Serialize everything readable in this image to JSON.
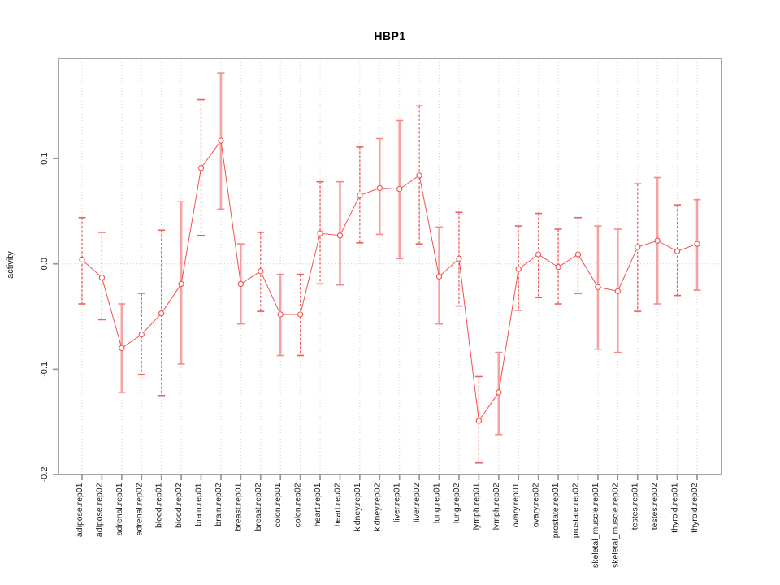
{
  "title": "HBP1",
  "colors": {
    "line": "#f5504e",
    "marker": "#f5504e",
    "marker_fill": "#ffffff",
    "error_bar_solid": "#f7a2a2",
    "error_bar_dashed": "#f15e5c",
    "frame": "#979797",
    "grid": "#cfcfcf",
    "text": "#1a1a1a",
    "background": "#ffffff"
  },
  "chart_data": {
    "type": "line",
    "title": "HBP1",
    "xlabel": "",
    "ylabel": "activity",
    "ylim": [
      -0.2,
      0.195
    ],
    "yticks": [
      0.1,
      0.0,
      -0.1,
      -0.2
    ],
    "ytick_labels": [
      "0.1",
      "0.0",
      "-0.1",
      "-0.2"
    ],
    "grid": "vertical dotted line at every category; horizontal dotted line at y=0",
    "legend_position": "none",
    "marker": "open-circle",
    "error_bars": true,
    "categories": [
      "adipose.rep01",
      "adipose.rep02",
      "adrenal.rep01",
      "adrenal.rep02",
      "blood.rep01",
      "blood.rep02",
      "brain.rep01",
      "brain.rep02",
      "breast.rep01",
      "breast.rep02",
      "colon.rep01",
      "colon.rep02",
      "heart.rep01",
      "heart.rep02",
      "kidney.rep01",
      "kidney.rep02",
      "liver.rep01",
      "liver.rep02",
      "lung.rep01",
      "lung.rep02",
      "lymph.rep01",
      "lymph.rep02",
      "ovary.rep01",
      "ovary.rep02",
      "prostate.rep01",
      "prostate.rep02",
      "skeletal_muscle.rep01",
      "skeletal_muscle.rep02",
      "testes.rep01",
      "testes.rep02",
      "thyroid.rep01",
      "thyroid.rep02"
    ],
    "series": [
      {
        "name": "activity",
        "values": [
          0.004,
          -0.013,
          -0.08,
          -0.067,
          -0.047,
          -0.019,
          0.091,
          0.117,
          -0.019,
          -0.007,
          -0.048,
          -0.048,
          0.029,
          0.027,
          0.065,
          0.072,
          0.071,
          0.084,
          -0.012,
          0.005,
          -0.149,
          -0.122,
          -0.005,
          0.009,
          -0.003,
          0.009,
          -0.022,
          -0.026,
          0.016,
          0.022,
          0.012,
          0.019
        ],
        "error_low": [
          -0.038,
          -0.053,
          -0.122,
          -0.105,
          -0.125,
          -0.095,
          0.027,
          0.052,
          -0.057,
          -0.045,
          -0.087,
          -0.087,
          -0.019,
          -0.02,
          0.02,
          0.028,
          0.005,
          0.019,
          -0.057,
          -0.04,
          -0.189,
          -0.162,
          -0.044,
          -0.032,
          -0.038,
          -0.028,
          -0.081,
          -0.084,
          -0.045,
          -0.038,
          -0.03,
          -0.025
        ],
        "error_high": [
          0.044,
          0.03,
          -0.038,
          -0.028,
          0.032,
          0.059,
          0.156,
          0.181,
          0.019,
          0.03,
          -0.01,
          -0.01,
          0.078,
          0.078,
          0.111,
          0.119,
          0.136,
          0.15,
          0.035,
          0.049,
          -0.107,
          -0.084,
          0.036,
          0.048,
          0.033,
          0.044,
          0.036,
          0.033,
          0.076,
          0.082,
          0.056,
          0.061
        ],
        "error_bar_styles": [
          "dashed",
          "dashed",
          "solid",
          "dashed",
          "dashed",
          "solid",
          "dashed",
          "solid",
          "solid",
          "dashed",
          "solid",
          "dashed",
          "dashed",
          "solid",
          "dashed",
          "solid",
          "solid",
          "dashed",
          "solid",
          "dashed",
          "dashed",
          "solid",
          "dashed",
          "dashed",
          "dashed",
          "dashed",
          "solid",
          "solid",
          "dashed",
          "solid",
          "dashed",
          "solid"
        ]
      }
    ]
  }
}
